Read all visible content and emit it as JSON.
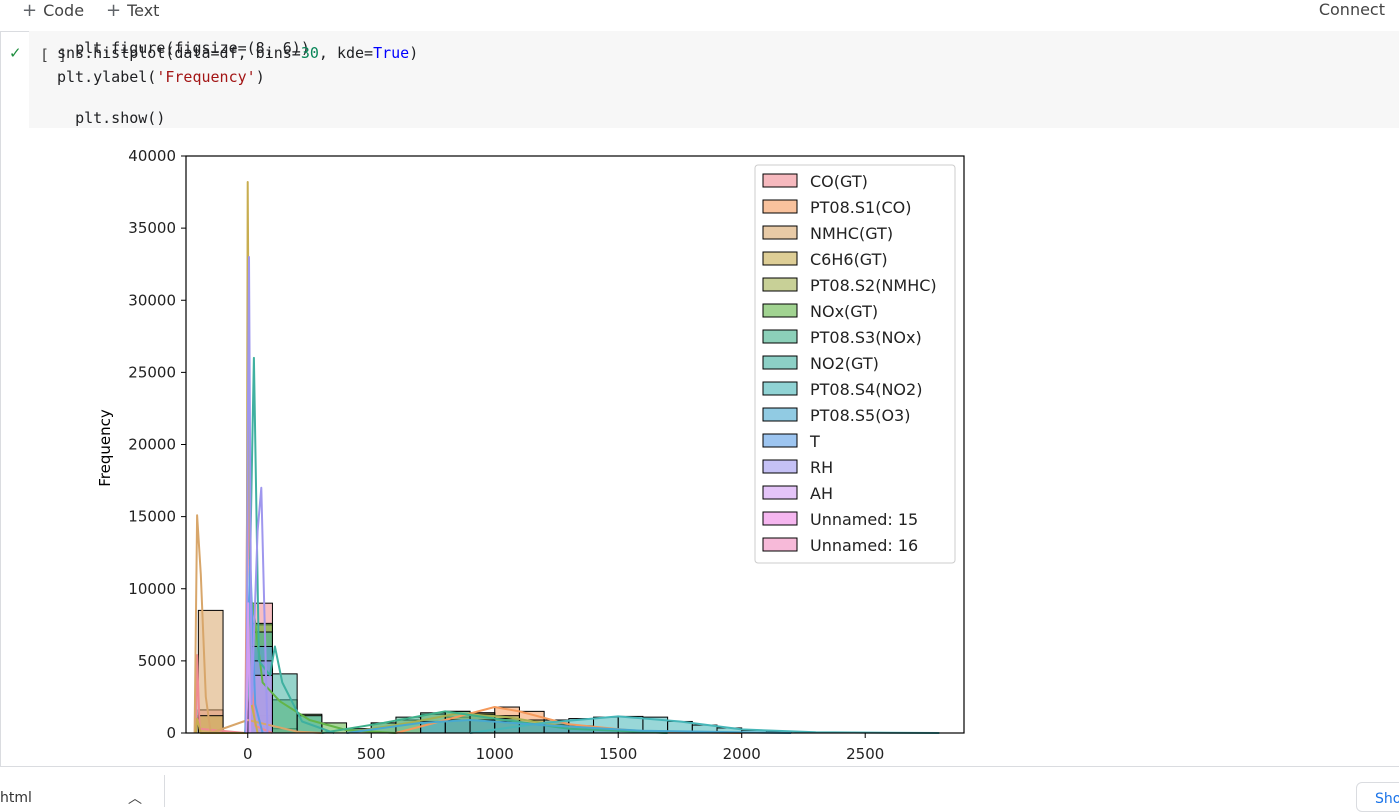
{
  "toolbar": {
    "code_label": "Code",
    "text_label": "Text",
    "connect_label": "Connect"
  },
  "cell": {
    "run_indicator": "[ ]",
    "code_lines": {
      "l0": "plt.figure(figsize=(8, 6))",
      "l1_pre": "sns.histplot(data=df, bins=",
      "l1_num": "30",
      "l1_mid": ", kde=",
      "l1_true": "True",
      "l1_post": ")",
      "l2_pre": "plt.ylabel(",
      "l2_str": "'Frequency'",
      "l2_post": ")",
      "l3": "plt.show()"
    }
  },
  "bottom": {
    "tab_label": "html",
    "show_label": "Sho"
  },
  "chart_data": {
    "type": "histogram",
    "ylabel": "Frequency",
    "xlabel": "",
    "xlim": [
      -250,
      2900
    ],
    "ylim": [
      0,
      40000
    ],
    "xticks": [
      0,
      500,
      1000,
      1500,
      2000,
      2500
    ],
    "yticks": [
      0,
      5000,
      10000,
      15000,
      20000,
      25000,
      30000,
      35000,
      40000
    ],
    "grid": false,
    "legend_position": "top-right",
    "bin_width": 100,
    "series": [
      {
        "name": "CO(GT)",
        "color": "#f08a92",
        "bars": [
          [
            -200,
            1600
          ],
          [
            0,
            9000
          ]
        ],
        "kde": [
          [
            -210,
            0
          ],
          [
            -205,
            5400
          ],
          [
            -195,
            300
          ],
          [
            -10,
            0
          ],
          [
            0,
            20500
          ],
          [
            12,
            4000
          ],
          [
            30,
            500
          ],
          [
            100,
            0
          ]
        ]
      },
      {
        "name": "PT08.S1(CO)",
        "color": "#f59a5c",
        "bars": [
          [
            800,
            1100
          ],
          [
            900,
            1400
          ],
          [
            1000,
            1800
          ],
          [
            1100,
            1500
          ],
          [
            1200,
            900
          ],
          [
            1300,
            500
          ],
          [
            1400,
            250
          ]
        ],
        "kde": [
          [
            600,
            0
          ],
          [
            800,
            900
          ],
          [
            1000,
            1800
          ],
          [
            1100,
            1500
          ],
          [
            1300,
            600
          ],
          [
            1600,
            100
          ],
          [
            2000,
            0
          ]
        ]
      },
      {
        "name": "NMHC(GT)",
        "color": "#d8a66a",
        "bars": [
          [
            -200,
            8500
          ],
          [
            0,
            1200
          ],
          [
            100,
            300
          ]
        ],
        "kde": [
          [
            -215,
            0
          ],
          [
            -205,
            15100
          ],
          [
            -190,
            11000
          ],
          [
            -170,
            2500
          ],
          [
            -150,
            0
          ],
          [
            0,
            900
          ],
          [
            200,
            100
          ],
          [
            300,
            0
          ]
        ]
      },
      {
        "name": "C6H6(GT)",
        "color": "#c8ad50",
        "bars": [
          [
            -200,
            1200
          ],
          [
            0,
            7500
          ]
        ],
        "kde": [
          [
            -210,
            0
          ],
          [
            -205,
            1000
          ],
          [
            -190,
            0
          ],
          [
            -5,
            0
          ],
          [
            0,
            38200
          ],
          [
            6,
            20000
          ],
          [
            15,
            2000
          ],
          [
            40,
            0
          ]
        ]
      },
      {
        "name": "PT08.S2(NMHC)",
        "color": "#a4b052",
        "bars": [
          [
            500,
            700
          ],
          [
            600,
            900
          ],
          [
            700,
            1300
          ],
          [
            800,
            1500
          ],
          [
            900,
            1400
          ],
          [
            1000,
            1200
          ],
          [
            1100,
            900
          ],
          [
            1200,
            600
          ],
          [
            1300,
            350
          ]
        ],
        "kde": [
          [
            400,
            0
          ],
          [
            650,
            700
          ],
          [
            850,
            1350
          ],
          [
            1050,
            1100
          ],
          [
            1300,
            400
          ],
          [
            1700,
            0
          ]
        ]
      },
      {
        "name": "NOx(GT)",
        "color": "#63b548",
        "bars": [
          [
            0,
            7600
          ],
          [
            100,
            2300
          ],
          [
            200,
            1300
          ],
          [
            300,
            700
          ],
          [
            400,
            300
          ]
        ],
        "kde": [
          [
            -10,
            0
          ],
          [
            20,
            9000
          ],
          [
            60,
            3500
          ],
          [
            130,
            2200
          ],
          [
            250,
            900
          ],
          [
            400,
            200
          ],
          [
            600,
            0
          ]
        ]
      },
      {
        "name": "PT08.S3(NOx)",
        "color": "#3fb08a",
        "bars": [
          [
            500,
            700
          ],
          [
            600,
            1100
          ],
          [
            700,
            1400
          ],
          [
            800,
            1500
          ],
          [
            900,
            1300
          ],
          [
            1000,
            1000
          ],
          [
            1100,
            650
          ]
        ],
        "kde": [
          [
            300,
            0
          ],
          [
            550,
            700
          ],
          [
            800,
            1500
          ],
          [
            1000,
            1000
          ],
          [
            1300,
            300
          ],
          [
            1700,
            0
          ]
        ]
      },
      {
        "name": "NO2(GT)",
        "color": "#3fb0a0",
        "bars": [
          [
            0,
            7000
          ],
          [
            100,
            4100
          ],
          [
            200,
            1200
          ]
        ],
        "kde": [
          [
            -10,
            0
          ],
          [
            0,
            3000
          ],
          [
            25,
            26000
          ],
          [
            45,
            5000
          ],
          [
            90,
            4000
          ],
          [
            110,
            6000
          ],
          [
            140,
            3500
          ],
          [
            220,
            800
          ],
          [
            350,
            0
          ]
        ]
      },
      {
        "name": "PT08.S4(NO2)",
        "color": "#46b6b8",
        "bars": [
          [
            1200,
            900
          ],
          [
            1300,
            1000
          ],
          [
            1400,
            1100
          ],
          [
            1500,
            1150
          ],
          [
            1600,
            1100
          ],
          [
            1700,
            800
          ],
          [
            1800,
            550
          ],
          [
            1900,
            350
          ],
          [
            2000,
            180
          ],
          [
            2100,
            80
          ]
        ],
        "kde": [
          [
            900,
            0
          ],
          [
            1200,
            700
          ],
          [
            1500,
            1150
          ],
          [
            1750,
            800
          ],
          [
            2000,
            250
          ],
          [
            2300,
            50
          ],
          [
            2800,
            0
          ]
        ]
      },
      {
        "name": "PT08.S5(O3)",
        "color": "#48a9d0",
        "bars": [
          [
            700,
            800
          ],
          [
            800,
            900
          ],
          [
            900,
            900
          ],
          [
            1000,
            800
          ],
          [
            1100,
            650
          ],
          [
            1200,
            500
          ],
          [
            1300,
            350
          ],
          [
            1400,
            220
          ]
        ],
        "kde": [
          [
            400,
            0
          ],
          [
            700,
            700
          ],
          [
            900,
            900
          ],
          [
            1200,
            550
          ],
          [
            1600,
            150
          ],
          [
            2200,
            0
          ]
        ]
      },
      {
        "name": "T",
        "color": "#5b9ee6",
        "bars": [
          [
            0,
            6000
          ]
        ],
        "kde": [
          [
            -10,
            0
          ],
          [
            10,
            12000
          ],
          [
            30,
            2000
          ],
          [
            60,
            0
          ]
        ]
      },
      {
        "name": "RH",
        "color": "#9f97ee",
        "bars": [
          [
            0,
            5000
          ]
        ],
        "kde": [
          [
            -5,
            0
          ],
          [
            0,
            20000
          ],
          [
            5,
            33000
          ],
          [
            15,
            2000
          ],
          [
            40,
            14000
          ],
          [
            55,
            17000
          ],
          [
            65,
            10000
          ],
          [
            80,
            0
          ]
        ]
      },
      {
        "name": "AH",
        "color": "#d29cf3",
        "bars": [
          [
            0,
            4000
          ]
        ],
        "kde": [
          [
            -5,
            0
          ],
          [
            2,
            9000
          ],
          [
            10,
            0
          ]
        ]
      },
      {
        "name": "Unnamed: 15",
        "color": "#ee86e4",
        "bars": [],
        "kde": []
      },
      {
        "name": "Unnamed: 16",
        "color": "#f28cc0",
        "bars": [],
        "kde": []
      }
    ]
  }
}
